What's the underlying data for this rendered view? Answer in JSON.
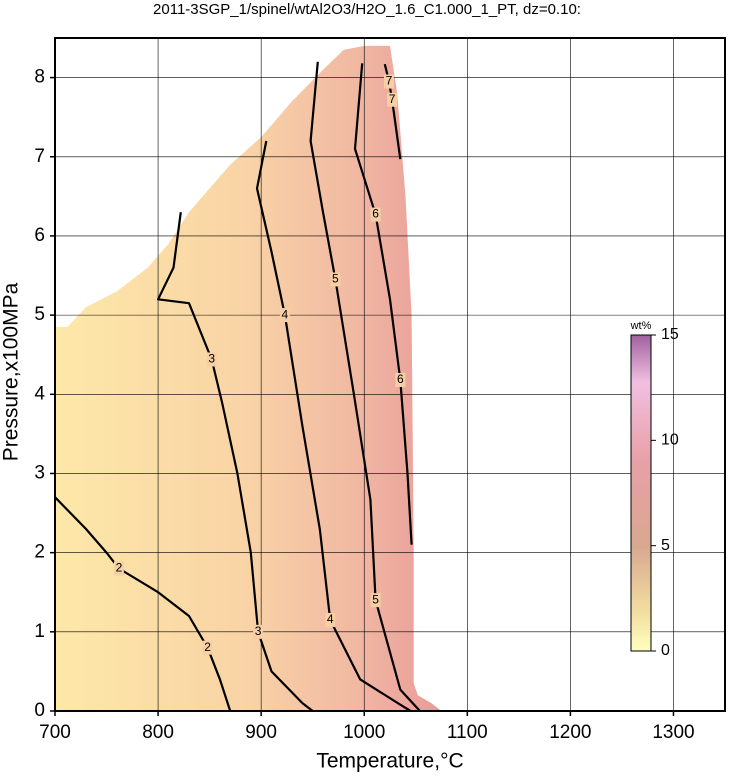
{
  "chart_data": {
    "type": "contour",
    "title": "2011-3SGP_1/spinel/wtAl2O3/H2O_1.6_C1.000_1_PT, dz=0.10:",
    "x_label": "Temperature,°C",
    "y_label": "Pressure,x100MPa",
    "xlim": [
      700,
      1350
    ],
    "ylim": [
      0,
      8.5
    ],
    "xticks": [
      700,
      800,
      900,
      1000,
      1100,
      1200,
      1300
    ],
    "yticks": [
      0,
      1,
      2,
      3,
      4,
      5,
      6,
      7,
      8
    ],
    "grid": true,
    "domain": {
      "x": [
        700,
        700,
        712,
        730,
        760,
        790,
        810,
        830,
        850,
        870,
        900,
        930,
        960,
        980,
        1000,
        1025,
        1032,
        1040,
        1046,
        1048,
        1048,
        1052,
        1065,
        1075
      ],
      "y": [
        0,
        4.85,
        4.85,
        5.1,
        5.3,
        5.6,
        5.9,
        6.3,
        6.6,
        6.9,
        7.25,
        7.7,
        8.1,
        8.35,
        8.4,
        8.4,
        7.8,
        6.5,
        5.0,
        2.0,
        0.35,
        0.2,
        0.1,
        0
      ]
    },
    "colorbar": {
      "label": "wt%",
      "lim": [
        0,
        15
      ],
      "ticks": [
        0,
        5,
        10,
        15
      ]
    },
    "contours": [
      {
        "level": 2,
        "x": [
          700,
          730,
          750,
          762,
          800,
          830,
          848,
          860,
          870
        ],
        "y": [
          2.7,
          2.3,
          2.0,
          1.8,
          1.5,
          1.2,
          0.8,
          0.4,
          0
        ]
      },
      {
        "level": 3,
        "x": [
          822,
          815,
          800,
          830,
          852,
          862,
          877,
          890,
          897,
          910,
          940,
          950
        ],
        "y": [
          6.3,
          5.6,
          5.2,
          5.15,
          4.44,
          3.9,
          3.0,
          2.0,
          1.0,
          0.5,
          0.1,
          0
        ]
      },
      {
        "level": 4,
        "x": [
          905,
          896,
          910,
          923,
          940,
          957,
          967,
          996,
          1035,
          1045
        ],
        "y": [
          7.2,
          6.6,
          5.8,
          5.0,
          3.6,
          2.29,
          1.15,
          0.4,
          0.08,
          0
        ]
      },
      {
        "level": 5,
        "x": [
          955,
          948,
          960,
          972,
          990,
          1006,
          1011,
          1035,
          1054
        ],
        "y": [
          8.2,
          7.2,
          6.3,
          5.45,
          4.0,
          2.67,
          1.4,
          0.27,
          0
        ]
      },
      {
        "level": 6,
        "x": [
          998,
          991,
          1011,
          1025,
          1035,
          1042,
          1046
        ],
        "y": [
          8.18,
          7.1,
          6.27,
          5.2,
          4.18,
          3.0,
          2.1
        ]
      },
      {
        "level": 7,
        "x": [
          1020,
          1024,
          1027,
          1035
        ],
        "y": [
          8.17,
          7.95,
          7.72,
          6.97
        ]
      }
    ]
  }
}
